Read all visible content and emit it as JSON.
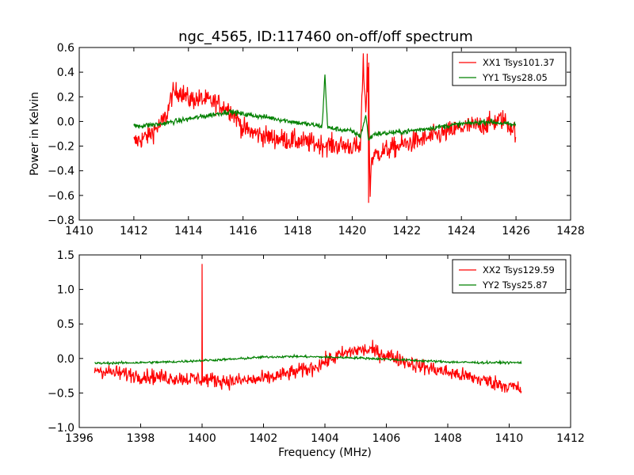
{
  "title": "ngc_4565, ID:117460 on-off/off spectrum",
  "chart_data": [
    {
      "type": "line",
      "title": "ngc_4565, ID:117460 on-off/off spectrum",
      "xlabel": "",
      "ylabel": "Power in Kelvin",
      "xlim": [
        1410,
        1428
      ],
      "ylim": [
        -0.8,
        0.6
      ],
      "xticks": [
        1410,
        1412,
        1414,
        1416,
        1418,
        1420,
        1422,
        1424,
        1426,
        1428
      ],
      "yticks": [
        -0.8,
        -0.6,
        -0.4,
        -0.2,
        0.0,
        0.2,
        0.4,
        0.6
      ],
      "xtick_labels": [
        "1410",
        "1412",
        "1414",
        "1416",
        "1418",
        "1420",
        "1422",
        "1424",
        "1426",
        "1428"
      ],
      "ytick_labels": [
        "−0.8",
        "−0.6",
        "−0.4",
        "−0.2",
        "0.0",
        "0.2",
        "0.4",
        "0.6"
      ],
      "grid": false,
      "legend_position": "top-right",
      "series": [
        {
          "name": "XX1 Tsys101.37",
          "color": "#ff0000",
          "noise": 0.06,
          "x": [
            1412.0,
            1412.5,
            1413.0,
            1413.2,
            1413.4,
            1413.7,
            1414.0,
            1414.5,
            1415.0,
            1415.5,
            1415.8,
            1416.0,
            1416.5,
            1417.0,
            1418.0,
            1419.0,
            1420.0,
            1420.3,
            1420.4,
            1420.5,
            1420.6,
            1420.65,
            1420.7,
            1421.0,
            1422.0,
            1423.0,
            1424.0,
            1425.0,
            1425.5,
            1426.0
          ],
          "y": [
            -0.17,
            -0.12,
            -0.02,
            0.05,
            0.22,
            0.25,
            0.18,
            0.18,
            0.15,
            0.1,
            0.02,
            -0.06,
            -0.1,
            -0.13,
            -0.16,
            -0.19,
            -0.2,
            -0.22,
            0.48,
            0.1,
            0.5,
            -0.65,
            -0.3,
            -0.25,
            -0.18,
            -0.12,
            -0.05,
            -0.02,
            0.02,
            -0.08
          ],
          "spikes": [
            {
              "x": 1420.4,
              "y": 0.5
            },
            {
              "x": 1420.55,
              "y": 0.55
            },
            {
              "x": 1420.6,
              "y": -0.66
            }
          ]
        },
        {
          "name": "YY1 Tsys28.05",
          "color": "#008000",
          "noise": 0.015,
          "x": [
            1412.0,
            1413.0,
            1414.0,
            1415.0,
            1415.5,
            1416.0,
            1417.0,
            1418.0,
            1418.9,
            1419.0,
            1419.1,
            1420.0,
            1420.3,
            1420.5,
            1420.6,
            1420.8,
            1421.0,
            1422.0,
            1423.0,
            1424.0,
            1425.0,
            1426.0
          ],
          "y": [
            -0.04,
            -0.02,
            0.02,
            0.06,
            0.08,
            0.06,
            0.03,
            -0.01,
            -0.04,
            0.38,
            -0.05,
            -0.08,
            -0.12,
            0.05,
            -0.15,
            -0.1,
            -0.1,
            -0.08,
            -0.05,
            -0.02,
            0.0,
            -0.03
          ],
          "spikes": [
            {
              "x": 1419.0,
              "y": 0.38
            }
          ]
        }
      ]
    },
    {
      "type": "line",
      "title": "",
      "xlabel": "Frequency (MHz)",
      "ylabel": "",
      "xlim": [
        1396,
        1412
      ],
      "ylim": [
        -1.0,
        1.5
      ],
      "xticks": [
        1396,
        1398,
        1400,
        1402,
        1404,
        1406,
        1408,
        1410,
        1412
      ],
      "yticks": [
        -1.0,
        -0.5,
        0.0,
        0.5,
        1.0,
        1.5
      ],
      "xtick_labels": [
        "1396",
        "1398",
        "1400",
        "1402",
        "1404",
        "1406",
        "1408",
        "1410",
        "1412"
      ],
      "ytick_labels": [
        "−1.0",
        "−0.5",
        "0.0",
        "0.5",
        "1.0",
        "1.5"
      ],
      "grid": false,
      "legend_position": "top-right",
      "series": [
        {
          "name": "XX2 Tsys129.59",
          "color": "#ff0000",
          "noise": 0.08,
          "x": [
            1396.5,
            1397.0,
            1398.0,
            1399.0,
            1400.0,
            1401.0,
            1402.0,
            1403.0,
            1403.5,
            1404.0,
            1404.5,
            1405.0,
            1405.5,
            1406.0,
            1406.5,
            1407.0,
            1408.0,
            1409.0,
            1410.0,
            1410.4
          ],
          "y": [
            -0.15,
            -0.2,
            -0.25,
            -0.28,
            -0.3,
            -0.33,
            -0.3,
            -0.2,
            -0.15,
            -0.05,
            0.05,
            0.12,
            0.12,
            0.05,
            -0.02,
            -0.1,
            -0.2,
            -0.3,
            -0.4,
            -0.45
          ],
          "spikes": [
            {
              "x": 1400.0,
              "y": 1.37
            }
          ]
        },
        {
          "name": "YY2 Tsys25.87",
          "color": "#008000",
          "noise": 0.012,
          "x": [
            1396.5,
            1398.0,
            1399.0,
            1400.0,
            1401.0,
            1402.0,
            1403.0,
            1404.0,
            1405.0,
            1406.0,
            1407.0,
            1408.0,
            1409.0,
            1410.4
          ],
          "y": [
            -0.07,
            -0.06,
            -0.05,
            -0.03,
            -0.01,
            0.02,
            0.03,
            0.02,
            0.01,
            -0.01,
            -0.03,
            -0.05,
            -0.06,
            -0.06
          ],
          "spikes": []
        }
      ]
    }
  ]
}
